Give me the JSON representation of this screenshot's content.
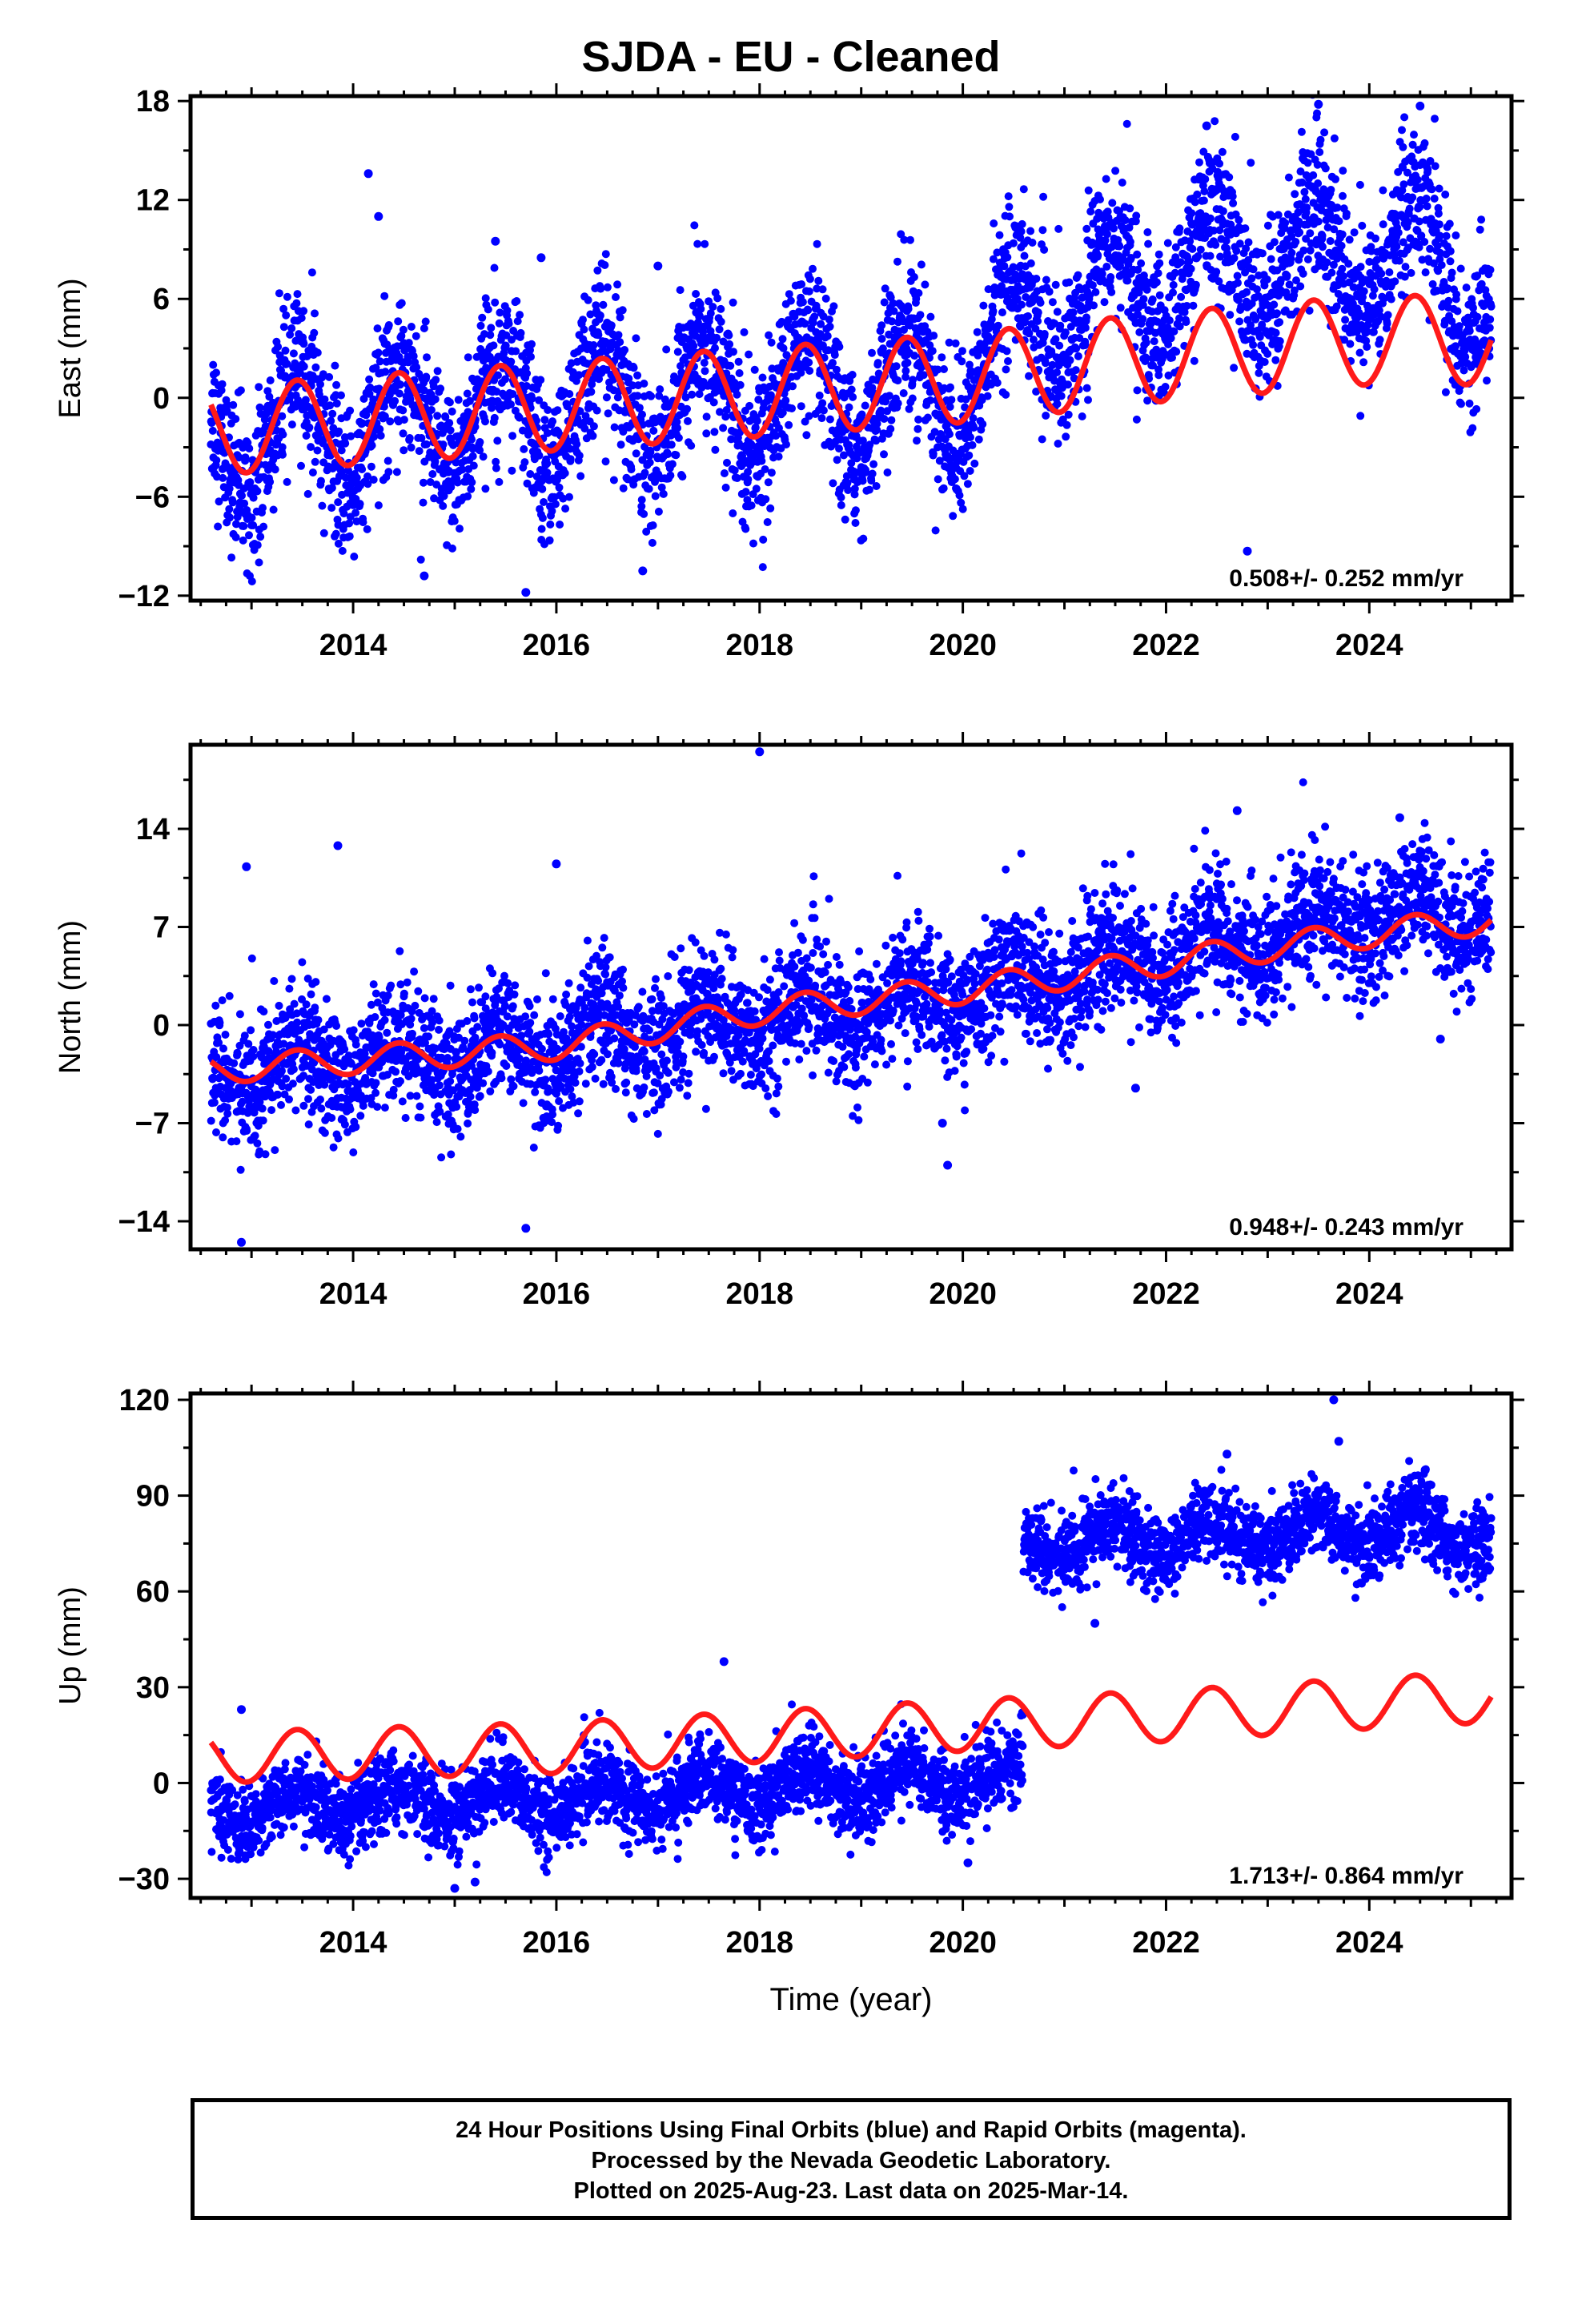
{
  "title": "SJDA  - EU - Cleaned",
  "footer": {
    "lines": [
      "24 Hour Positions Using Final Orbits (blue) and Rapid Orbits (magenta).",
      "Processed by the Nevada Geodetic Laboratory.",
      "Plotted on 2025-Aug-23. Last data on 2025-Mar-14."
    ]
  },
  "colors": {
    "points": "#0000ff",
    "fit": "#ff1a1a",
    "axis": "#000000"
  },
  "chart_data": [
    {
      "type": "scatter",
      "ylabel": "East (mm)",
      "xlabel": "",
      "xlim": [
        2012.4,
        2025.4
      ],
      "ylim": [
        -12.3,
        18.3
      ],
      "xticks": [
        2014,
        2016,
        2018,
        2020,
        2022,
        2024
      ],
      "xtick_labels": [
        "2014",
        "2016",
        "2018",
        "2020",
        "2022",
        "2024"
      ],
      "yticks": [
        -12,
        -6,
        0,
        6,
        12,
        18
      ],
      "ytick_labels": [
        "−12",
        "−6",
        "0",
        "6",
        "12",
        "18"
      ],
      "rate_label": "0.508+/- 0.252 mm/yr",
      "data_span": [
        2012.6,
        2025.2
      ],
      "series": [
        {
          "role": "daily-positions",
          "trend": [
            [
              2012.6,
              -2.5
            ],
            [
              2016,
              -0.5
            ],
            [
              2020,
              0.5
            ],
            [
              2020.6,
              5
            ],
            [
              2022.5,
              8
            ],
            [
              2024.5,
              9
            ],
            [
              2025.2,
              6
            ]
          ],
          "seasonal_amplitude": 3.5,
          "scatter": 2.3
        },
        {
          "role": "model-fit",
          "trend": [
            [
              2012.6,
              -2
            ],
            [
              2016,
              -0.5
            ],
            [
              2020,
              1.2
            ],
            [
              2022,
              2.5
            ],
            [
              2024,
              3.5
            ],
            [
              2025.2,
              3.5
            ]
          ],
          "seasonal_amplitude": 2.7
        }
      ],
      "outliers": [
        [
          2014.15,
          13.6
        ],
        [
          2014.25,
          11
        ],
        [
          2015.4,
          9.5
        ],
        [
          2015.85,
          8.5
        ],
        [
          2017.0,
          8
        ],
        [
          2022.4,
          16.5
        ],
        [
          2023.5,
          17.8
        ],
        [
          2024.5,
          17.7
        ],
        [
          2022.8,
          -9.3
        ],
        [
          2015.7,
          -11.8
        ],
        [
          2014.7,
          -10.8
        ],
        [
          2016.85,
          -10.5
        ]
      ]
    },
    {
      "type": "scatter",
      "ylabel": "North (mm)",
      "xlabel": "",
      "xlim": [
        2012.4,
        2025.4
      ],
      "ylim": [
        -16,
        20
      ],
      "xticks": [
        2014,
        2016,
        2018,
        2020,
        2022,
        2024
      ],
      "xtick_labels": [
        "2014",
        "2016",
        "2018",
        "2020",
        "2022",
        "2024"
      ],
      "yticks": [
        -14,
        -7,
        0,
        7,
        14
      ],
      "ytick_labels": [
        "−14",
        "−7",
        "0",
        "7",
        "14"
      ],
      "rate_label": "0.948+/- 0.243 mm/yr",
      "data_span": [
        2012.6,
        2025.2
      ],
      "series": [
        {
          "role": "daily-positions",
          "trend": [
            [
              2012.6,
              -3.5
            ],
            [
              2016,
              -1.5
            ],
            [
              2018,
              0.5
            ],
            [
              2020,
              2
            ],
            [
              2022,
              5
            ],
            [
              2024,
              7.5
            ],
            [
              2025.2,
              8
            ]
          ],
          "seasonal_amplitude": 1.5,
          "scatter": 2.2
        },
        {
          "role": "model-fit",
          "trend": [
            [
              2012.6,
              -3.2
            ],
            [
              2016,
              -1.5
            ],
            [
              2018,
              1
            ],
            [
              2020,
              2.5
            ],
            [
              2022,
              4.5
            ],
            [
              2024,
              6.5
            ],
            [
              2025.2,
              7.5
            ]
          ],
          "seasonal_amplitude": 1
        }
      ],
      "outliers": [
        [
          2018.0,
          19.5
        ],
        [
          2013.85,
          12.8
        ],
        [
          2012.95,
          11.3
        ],
        [
          2016.0,
          11.5
        ],
        [
          2022.7,
          15.3
        ],
        [
          2024.3,
          14.8
        ],
        [
          2015.7,
          -14.5
        ],
        [
          2012.9,
          -15.5
        ],
        [
          2019.8,
          -7
        ],
        [
          2019.85,
          -10
        ],
        [
          2021.7,
          -4.5
        ],
        [
          2024.7,
          -1
        ]
      ]
    },
    {
      "type": "scatter",
      "ylabel": "Up (mm)",
      "xlabel": "Time (year)",
      "xlim": [
        2012.4,
        2025.4
      ],
      "ylim": [
        -36,
        122
      ],
      "xticks": [
        2014,
        2016,
        2018,
        2020,
        2022,
        2024
      ],
      "xtick_labels": [
        "2014",
        "2016",
        "2018",
        "2020",
        "2022",
        "2024"
      ],
      "yticks": [
        -30,
        0,
        30,
        60,
        90,
        120
      ],
      "ytick_labels": [
        "−30",
        "0",
        "30",
        "60",
        "90",
        "120"
      ],
      "rate_label": "1.713+/- 0.864 mm/yr",
      "data_span": [
        2012.6,
        2025.2
      ],
      "offset_epoch": 2020.6,
      "series": [
        {
          "role": "daily-positions",
          "trend": [
            [
              2012.6,
              -8
            ],
            [
              2016,
              -5
            ],
            [
              2020.59,
              2
            ],
            [
              2020.6,
              75
            ],
            [
              2022,
              76
            ],
            [
              2024,
              80
            ],
            [
              2025.2,
              77
            ]
          ],
          "seasonal_amplitude": 5,
          "scatter": 6
        },
        {
          "role": "model-fit",
          "trend": [
            [
              2012.6,
              8
            ],
            [
              2016,
              11
            ],
            [
              2020,
              18
            ],
            [
              2022,
              21
            ],
            [
              2024,
              25
            ],
            [
              2025.2,
              27
            ]
          ],
          "seasonal_amplitude": 8
        }
      ],
      "outliers": [
        [
          2017.65,
          38
        ],
        [
          2012.9,
          23
        ],
        [
          2023.65,
          120
        ],
        [
          2023.7,
          107
        ],
        [
          2022.6,
          103
        ],
        [
          2024.55,
          98
        ],
        [
          2021.3,
          50
        ],
        [
          2020.05,
          -25
        ],
        [
          2015.2,
          -31
        ],
        [
          2015.0,
          -33
        ]
      ]
    }
  ]
}
